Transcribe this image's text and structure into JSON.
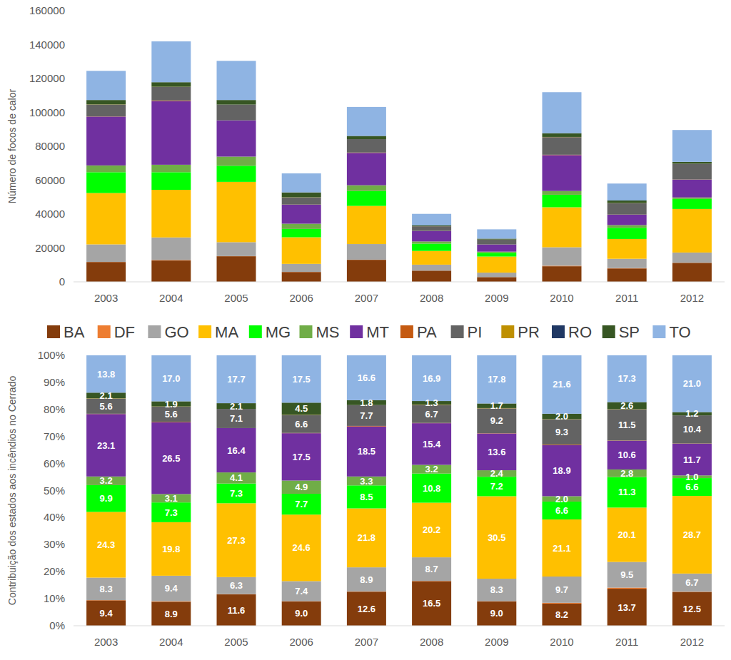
{
  "chart_data": [
    {
      "type": "bar",
      "stacked": true,
      "grid": false,
      "legend": "bottom",
      "y_label": "Número de focos de calor",
      "categories": [
        "2003",
        "2004",
        "2005",
        "2006",
        "2007",
        "2008",
        "2009",
        "2010",
        "2011",
        "2012"
      ],
      "ylim": [
        0,
        160000
      ],
      "yticks": [
        0,
        20000,
        40000,
        60000,
        80000,
        100000,
        120000,
        140000,
        160000
      ],
      "series": [
        {
          "name": "BA",
          "color": "#843c0c",
          "values": [
            11700,
            12600,
            15100,
            5800,
            13000,
            6600,
            2800,
            9200,
            7900,
            11200
          ]
        },
        {
          "name": "DF",
          "color": "#ed7d31",
          "values": [
            100,
            300,
            100,
            100,
            100,
            40,
            30,
            300,
            200,
            100
          ]
        },
        {
          "name": "GO",
          "color": "#a5a5a5",
          "values": [
            10300,
            13300,
            8200,
            4700,
            9200,
            3500,
            2600,
            10900,
            5500,
            6000
          ]
        },
        {
          "name": "MA",
          "color": "#ffc000",
          "values": [
            30300,
            28100,
            35600,
            15700,
            22500,
            8100,
            9500,
            23600,
            11700,
            25700
          ]
        },
        {
          "name": "MG",
          "color": "#00ff00",
          "values": [
            12300,
            10400,
            9500,
            4900,
            8800,
            4300,
            2200,
            7400,
            6600,
            5900
          ]
        },
        {
          "name": "MS",
          "color": "#70ad47",
          "values": [
            4000,
            4400,
            5400,
            3100,
            3400,
            1300,
            700,
            2200,
            1600,
            900
          ]
        },
        {
          "name": "MT",
          "color": "#7030a0",
          "values": [
            28800,
            37600,
            21400,
            11200,
            19100,
            6200,
            4200,
            21200,
            6100,
            10500
          ]
        },
        {
          "name": "PA",
          "color": "#c55a11",
          "values": [
            100,
            300,
            0,
            100,
            200,
            40,
            30,
            200,
            100,
            100
          ]
        },
        {
          "name": "PI",
          "color": "#636363",
          "values": [
            7000,
            8000,
            9300,
            4200,
            7900,
            2700,
            2900,
            10400,
            6700,
            9300
          ]
        },
        {
          "name": "PR",
          "color": "#bf9000",
          "values": [
            100,
            100,
            0,
            100,
            0,
            40,
            30,
            100,
            100,
            0
          ]
        },
        {
          "name": "RO",
          "color": "#203864",
          "values": [
            0,
            0,
            0,
            0,
            0,
            0,
            0,
            0,
            0,
            0
          ]
        },
        {
          "name": "SP",
          "color": "#375623",
          "values": [
            2600,
            2700,
            2700,
            2900,
            1900,
            500,
            500,
            2200,
            1500,
            1100
          ]
        },
        {
          "name": "TO",
          "color": "#8fb4e3",
          "values": [
            17200,
            24100,
            23100,
            11200,
            17100,
            6800,
            5500,
            24200,
            10000,
            18800
          ]
        }
      ]
    },
    {
      "type": "bar",
      "stacked": true,
      "grid": false,
      "data_labels": true,
      "y_label": "Contribuição dos estados aos incêndios no Cerrado",
      "categories": [
        "2003",
        "2004",
        "2005",
        "2006",
        "2007",
        "2008",
        "2009",
        "2010",
        "2011",
        "2012"
      ],
      "ylim": [
        0,
        100
      ],
      "yticks": [
        {
          "value": 0,
          "label": "0%"
        },
        {
          "value": 10,
          "label": "10%"
        },
        {
          "value": 20,
          "label": "20%"
        },
        {
          "value": 30,
          "label": "30%"
        },
        {
          "value": 40,
          "label": "40%"
        },
        {
          "value": 50,
          "label": "50%"
        },
        {
          "value": 60,
          "label": "60%"
        },
        {
          "value": 70,
          "label": "70%"
        },
        {
          "value": 80,
          "label": "80%"
        },
        {
          "value": 90,
          "label": "90%"
        },
        {
          "value": 100,
          "label": "100%"
        }
      ],
      "series": [
        {
          "name": "BA",
          "color": "#843c0c",
          "values": [
            9.4,
            8.9,
            11.6,
            9.0,
            12.6,
            16.5,
            9.0,
            8.2,
            13.7,
            12.5
          ],
          "value_labels": [
            "9.4",
            "8.9",
            "11.6",
            "9.0",
            "12.6",
            "16.5",
            "9.0",
            "8.2",
            "13.7",
            "12.5"
          ]
        },
        {
          "name": "DF",
          "color": "#ed7d31",
          "values": [
            0.1,
            0.2,
            0.1,
            0.1,
            0.1,
            0.1,
            0.1,
            0.3,
            0.4,
            0.1
          ],
          "value_labels": [
            null,
            null,
            null,
            null,
            null,
            null,
            null,
            null,
            null,
            null
          ]
        },
        {
          "name": "GO",
          "color": "#a5a5a5",
          "values": [
            8.3,
            9.4,
            6.3,
            7.4,
            8.9,
            8.7,
            8.3,
            9.7,
            9.5,
            6.7
          ],
          "value_labels": [
            "8.3",
            "9.4",
            "6.3",
            "7.4",
            "8.9",
            "8.7",
            "8.3",
            "9.7",
            "9.5",
            "6.7"
          ]
        },
        {
          "name": "MA",
          "color": "#ffc000",
          "values": [
            24.3,
            19.8,
            27.3,
            24.6,
            21.8,
            20.2,
            30.5,
            21.1,
            20.1,
            28.7
          ],
          "value_labels": [
            "24.3",
            "19.8",
            "27.3",
            "24.6",
            "21.8",
            "20.2",
            "30.5",
            "21.1",
            "20.1",
            "28.7"
          ]
        },
        {
          "name": "MG",
          "color": "#00ff00",
          "values": [
            9.9,
            7.3,
            7.3,
            7.7,
            8.5,
            10.8,
            7.2,
            6.6,
            11.3,
            6.6
          ],
          "value_labels": [
            "9.9",
            "7.3",
            "7.3",
            "7.7",
            "8.5",
            "10.8",
            "7.2",
            "6.6",
            "11.3",
            "6.6"
          ]
        },
        {
          "name": "MS",
          "color": "#70ad47",
          "values": [
            3.2,
            3.1,
            4.1,
            4.9,
            3.3,
            3.2,
            2.4,
            2.0,
            2.8,
            1.0
          ],
          "value_labels": [
            "3.2",
            "3.1",
            "4.1",
            "4.9",
            "3.3",
            "3.2",
            "2.4",
            "2.0",
            "2.8",
            "1.0"
          ]
        },
        {
          "name": "MT",
          "color": "#7030a0",
          "values": [
            23.1,
            26.5,
            16.4,
            17.5,
            18.5,
            15.4,
            13.6,
            18.9,
            10.6,
            11.7
          ],
          "value_labels": [
            "23.1",
            "26.5",
            "16.4",
            "17.5",
            "18.5",
            "15.4",
            "13.6",
            "18.9",
            "10.6",
            "11.7"
          ]
        },
        {
          "name": "PA",
          "color": "#c55a11",
          "values": [
            0.1,
            0.2,
            0,
            0.1,
            0.2,
            0.1,
            0.1,
            0.2,
            0.1,
            0.1
          ],
          "value_labels": [
            null,
            null,
            null,
            null,
            null,
            null,
            null,
            null,
            null,
            null
          ]
        },
        {
          "name": "PI",
          "color": "#636363",
          "values": [
            5.6,
            5.6,
            7.1,
            6.6,
            7.7,
            6.7,
            9.2,
            9.3,
            11.5,
            10.4
          ],
          "value_labels": [
            "5.6",
            "5.6",
            "7.1",
            "6.6",
            "7.7",
            "6.7",
            "9.2",
            "9.3",
            "11.5",
            "10.4"
          ]
        },
        {
          "name": "PR",
          "color": "#bf9000",
          "values": [
            0.1,
            0.1,
            0,
            0.1,
            0,
            0.1,
            0.1,
            0.1,
            0.1,
            0
          ],
          "value_labels": [
            null,
            null,
            null,
            null,
            null,
            null,
            null,
            null,
            null,
            null
          ]
        },
        {
          "name": "RO",
          "color": "#203864",
          "values": [
            0,
            0,
            0,
            0,
            0,
            0,
            0,
            0,
            0,
            0
          ],
          "value_labels": [
            null,
            null,
            null,
            null,
            null,
            null,
            null,
            null,
            null,
            null
          ]
        },
        {
          "name": "SP",
          "color": "#375623",
          "values": [
            2.1,
            1.9,
            2.1,
            4.5,
            1.8,
            1.3,
            1.7,
            2.0,
            2.6,
            1.2
          ],
          "value_labels": [
            "2.1",
            "1.9",
            "2.1",
            "4.5",
            "1.8",
            "1.3",
            "1.7",
            "2.0",
            "2.6",
            "1.2"
          ]
        },
        {
          "name": "TO",
          "color": "#8fb4e3",
          "values": [
            13.8,
            17.0,
            17.7,
            17.5,
            16.6,
            16.9,
            17.8,
            21.6,
            17.3,
            21.0
          ],
          "value_labels": [
            "13.8",
            "17.0",
            "17.7",
            "17.5",
            "16.6",
            "16.9",
            "17.8",
            "21.6",
            "17.3",
            "21.0"
          ]
        }
      ]
    }
  ]
}
